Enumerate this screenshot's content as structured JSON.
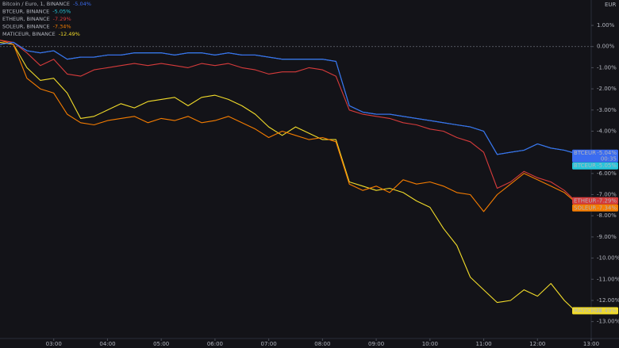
{
  "chart_data": {
    "type": "line",
    "y_axis_label": "EUR",
    "countdown": "00:35",
    "x": [
      2.0,
      2.25,
      2.5,
      2.75,
      3.0,
      3.25,
      3.5,
      3.75,
      4.0,
      4.25,
      4.5,
      4.75,
      5.0,
      5.25,
      5.5,
      5.75,
      6.0,
      6.25,
      6.5,
      6.75,
      7.0,
      7.25,
      7.5,
      7.75,
      8.0,
      8.25,
      8.5,
      8.75,
      9.0,
      9.25,
      9.5,
      9.75,
      10.0,
      10.25,
      10.5,
      10.75,
      11.0,
      11.25,
      11.5,
      11.75,
      12.0,
      12.25,
      12.5,
      12.7
    ],
    "xlim": [
      2.0,
      13.0
    ],
    "xticks": [
      {
        "value": 3,
        "label": "03:00"
      },
      {
        "value": 4,
        "label": "04:00"
      },
      {
        "value": 5,
        "label": "05:00"
      },
      {
        "value": 6,
        "label": "06:00"
      },
      {
        "value": 7,
        "label": "07:00"
      },
      {
        "value": 8,
        "label": "08:00"
      },
      {
        "value": 9,
        "label": "09:00"
      },
      {
        "value": 10,
        "label": "10:00"
      },
      {
        "value": 11,
        "label": "11:00"
      },
      {
        "value": 12,
        "label": "12:00"
      },
      {
        "value": 13,
        "label": "13:00"
      }
    ],
    "ylim": [
      -13.8,
      2.2
    ],
    "yticks": [
      {
        "value": 1,
        "label": "1.00%"
      },
      {
        "value": 0,
        "label": "0.00%"
      },
      {
        "value": -1,
        "label": "-1.00%"
      },
      {
        "value": -2,
        "label": "-2.00%"
      },
      {
        "value": -3,
        "label": "-3.00%"
      },
      {
        "value": -4,
        "label": "-4.00%"
      },
      {
        "value": -5,
        "label": "-5.00%"
      },
      {
        "value": -6,
        "label": "-6.00%"
      },
      {
        "value": -7,
        "label": "-7.00%"
      },
      {
        "value": -8,
        "label": "-8.00%"
      },
      {
        "value": -9,
        "label": "-9.00%"
      },
      {
        "value": -10,
        "label": "-10.00%"
      },
      {
        "value": -11,
        "label": "-11.00%"
      },
      {
        "value": -12,
        "label": "-12.00%"
      },
      {
        "value": -13,
        "label": "-13.00%"
      }
    ],
    "series": [
      {
        "name": "Bitcoin / Euro, 1, BINANCE",
        "tag": "BTCEUR",
        "color": "#3b6cf0",
        "value_label": "-5.04%",
        "values": [
          0.1,
          0.2,
          -0.2,
          -0.3,
          -0.2,
          -0.6,
          -0.5,
          -0.5,
          -0.4,
          -0.4,
          -0.3,
          -0.3,
          -0.3,
          -0.4,
          -0.3,
          -0.3,
          -0.4,
          -0.3,
          -0.4,
          -0.4,
          -0.5,
          -0.6,
          -0.6,
          -0.6,
          -0.6,
          -0.7,
          -2.8,
          -3.1,
          -3.2,
          -3.2,
          -3.3,
          -3.4,
          -3.5,
          -3.6,
          -3.7,
          -3.8,
          -4.0,
          -5.1,
          -5.0,
          -4.9,
          -4.6,
          -4.8,
          -4.9,
          -5.04
        ]
      },
      {
        "name": "BTCEUR, BINANCE",
        "tag": "BTCEUR",
        "color": "#26c6da",
        "value_label": "-5.05%",
        "values": [
          0.1,
          0.2,
          -0.2,
          -0.3,
          -0.2,
          -0.6,
          -0.5,
          -0.5,
          -0.4,
          -0.4,
          -0.3,
          -0.3,
          -0.3,
          -0.4,
          -0.3,
          -0.3,
          -0.4,
          -0.3,
          -0.4,
          -0.4,
          -0.5,
          -0.6,
          -0.6,
          -0.6,
          -0.6,
          -0.7,
          -2.8,
          -3.1,
          -3.2,
          -3.2,
          -3.3,
          -3.4,
          -3.5,
          -3.6,
          -3.7,
          -3.8,
          -4.0,
          -5.1,
          -5.0,
          -4.9,
          -4.6,
          -4.8,
          -4.9,
          -5.05
        ]
      },
      {
        "name": "ETHEUR, BINANCE",
        "tag": "ETHEUR",
        "color": "#d63b3b",
        "value_label": "-7.29%",
        "values": [
          0.3,
          0.2,
          -0.3,
          -0.9,
          -0.6,
          -1.3,
          -1.4,
          -1.1,
          -1.0,
          -0.9,
          -0.8,
          -0.9,
          -0.8,
          -0.9,
          -1.0,
          -0.8,
          -0.9,
          -0.8,
          -1.0,
          -1.1,
          -1.3,
          -1.2,
          -1.2,
          -1.0,
          -1.1,
          -1.4,
          -3.0,
          -3.2,
          -3.3,
          -3.4,
          -3.6,
          -3.7,
          -3.9,
          -4.0,
          -4.3,
          -4.5,
          -5.0,
          -6.7,
          -6.4,
          -5.9,
          -6.2,
          -6.4,
          -6.8,
          -7.29
        ]
      },
      {
        "name": "SOLEUR, BINANCE",
        "tag": "SOLEUR",
        "color": "#f57c00",
        "value_label": "-7.34%",
        "values": [
          0.3,
          0.1,
          -1.5,
          -2.0,
          -2.2,
          -3.2,
          -3.6,
          -3.7,
          -3.5,
          -3.4,
          -3.3,
          -3.6,
          -3.4,
          -3.5,
          -3.3,
          -3.6,
          -3.5,
          -3.3,
          -3.6,
          -3.9,
          -4.3,
          -4.0,
          -4.2,
          -4.4,
          -4.3,
          -4.5,
          -6.5,
          -6.8,
          -6.6,
          -6.9,
          -6.3,
          -6.5,
          -6.4,
          -6.6,
          -6.9,
          -7.0,
          -7.8,
          -7.0,
          -6.5,
          -6.0,
          -6.3,
          -6.6,
          -6.9,
          -7.34
        ]
      },
      {
        "name": "MATICEUR, BINANCE",
        "tag": "MATICEUR",
        "color": "#f2dc2a",
        "value_label": "-12.49%",
        "values": [
          0.2,
          0.1,
          -1.0,
          -1.6,
          -1.5,
          -2.2,
          -3.4,
          -3.3,
          -3.0,
          -2.7,
          -2.9,
          -2.6,
          -2.5,
          -2.4,
          -2.8,
          -2.4,
          -2.3,
          -2.5,
          -2.8,
          -3.2,
          -3.8,
          -4.2,
          -3.8,
          -4.1,
          -4.4,
          -4.4,
          -6.4,
          -6.6,
          -6.8,
          -6.7,
          -6.9,
          -7.3,
          -7.6,
          -8.6,
          -9.4,
          -10.9,
          -11.5,
          -12.1,
          -12.0,
          -11.5,
          -11.8,
          -11.2,
          -12.0,
          -12.49
        ]
      }
    ]
  }
}
